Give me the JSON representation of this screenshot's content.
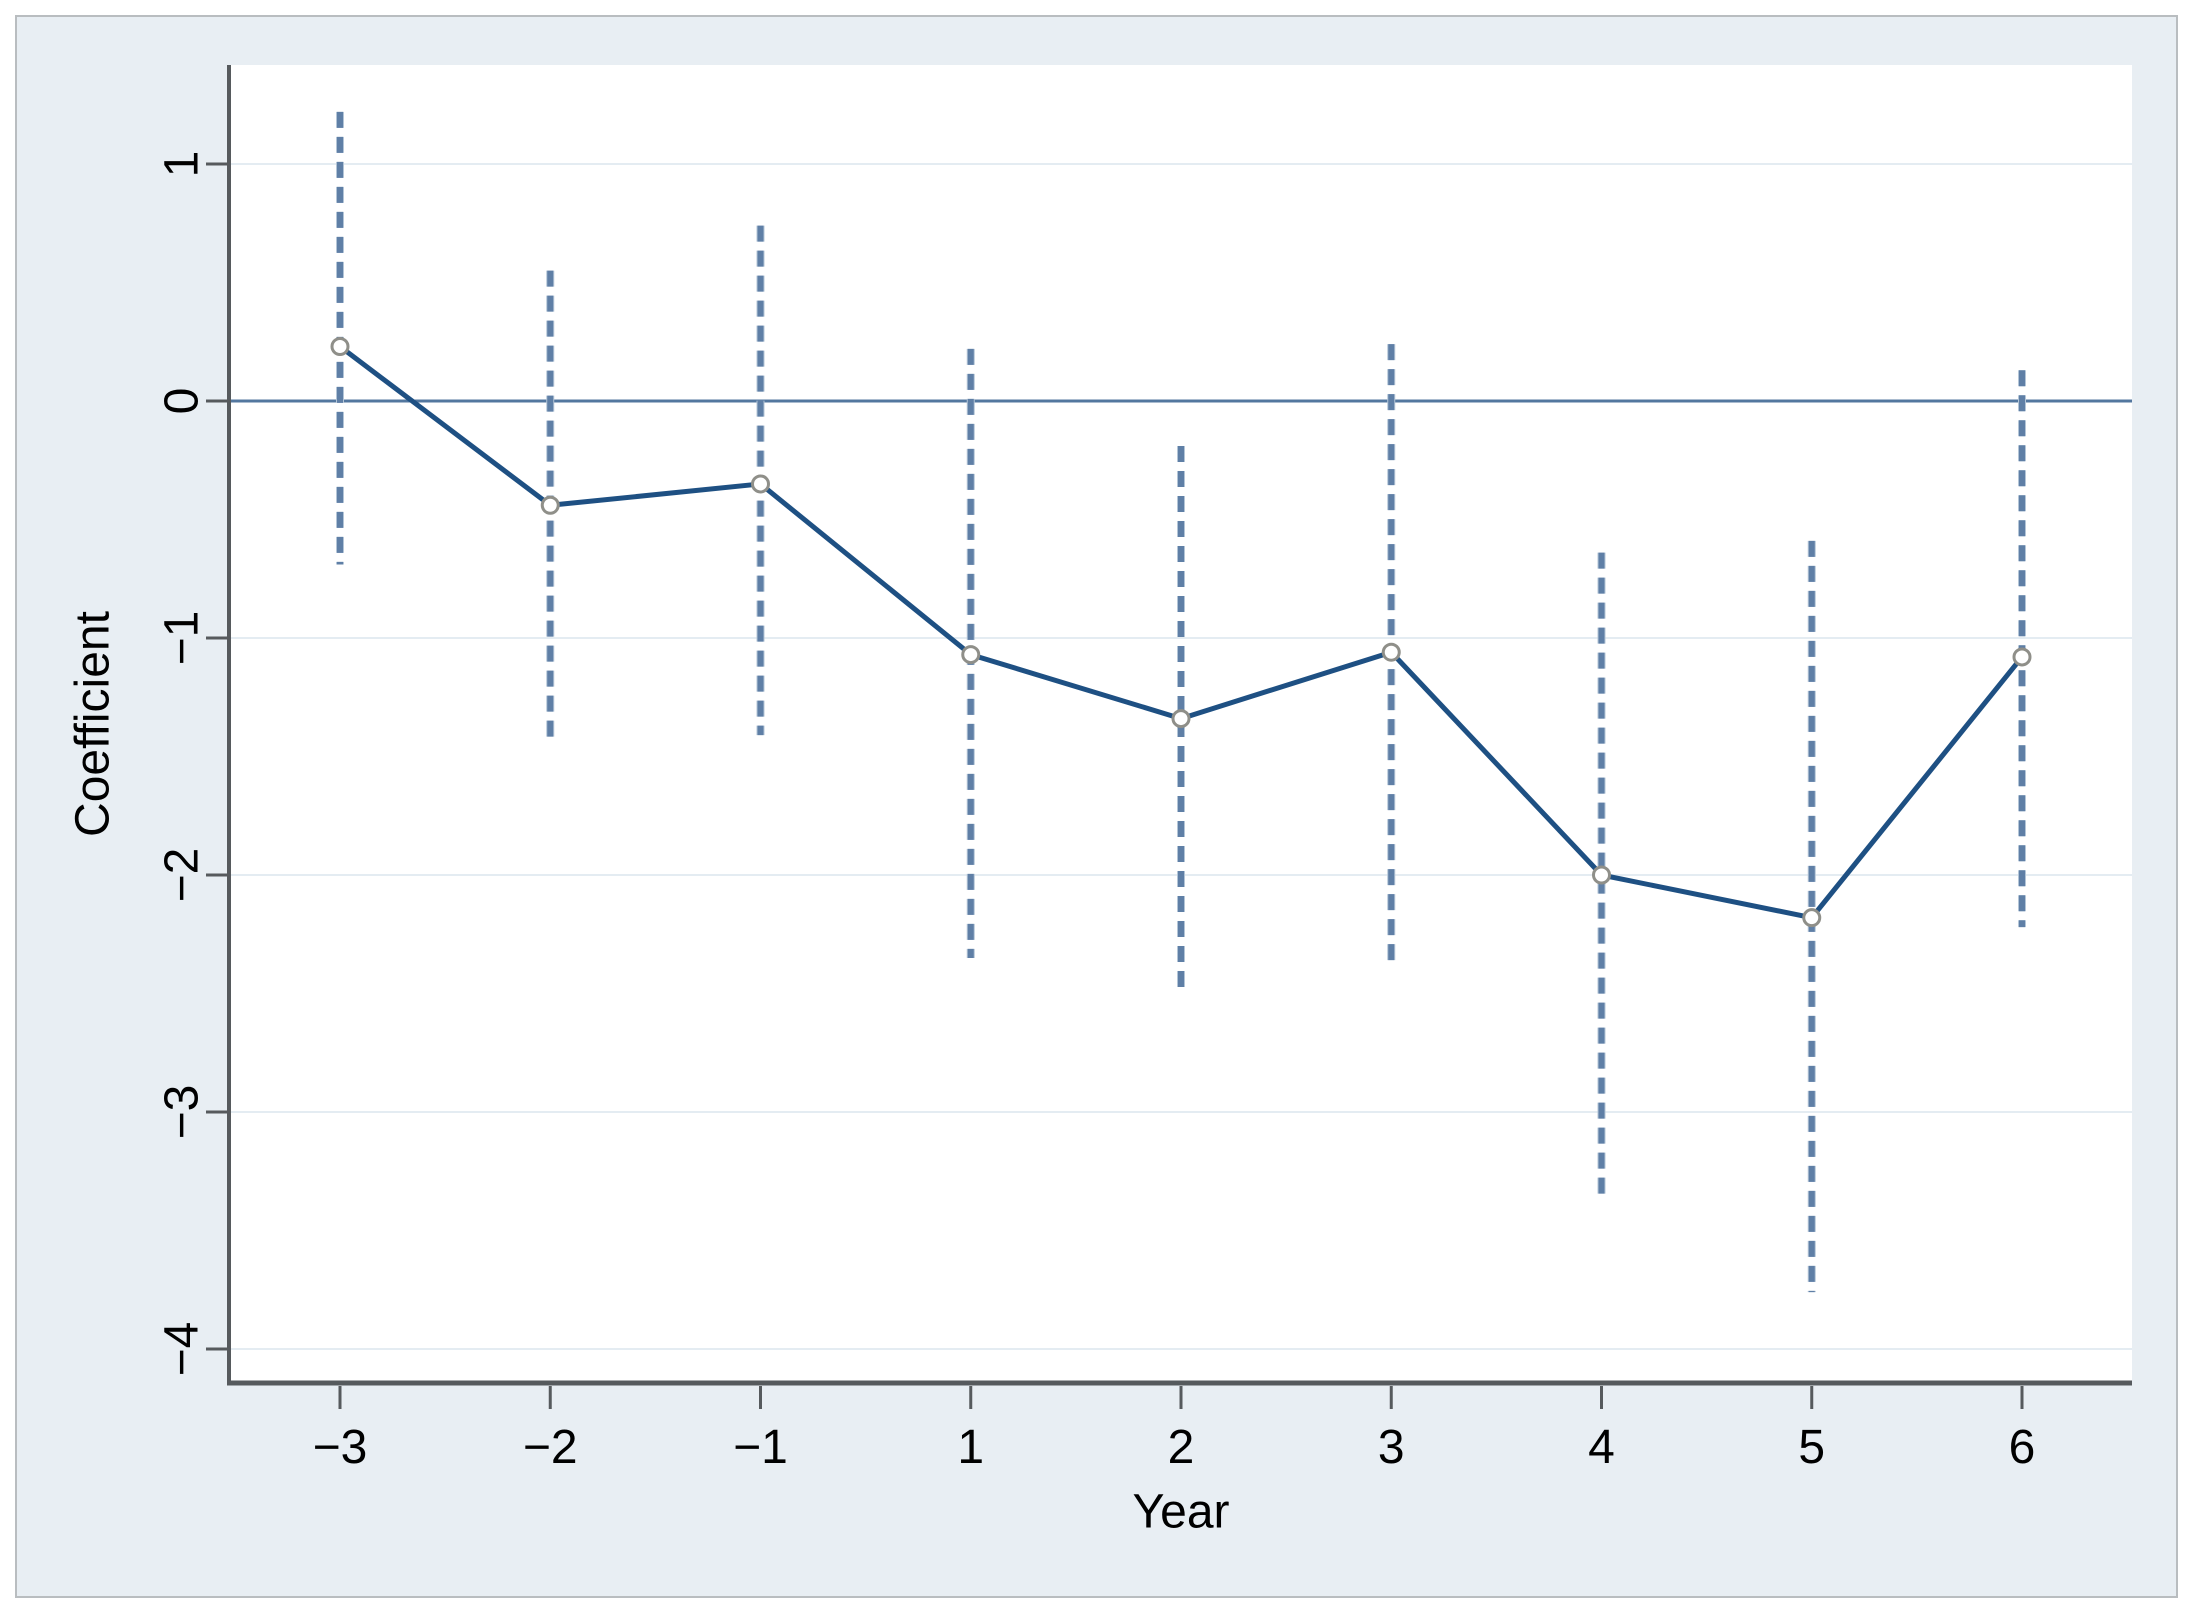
{
  "figure": {
    "background_color": "#e8eef3",
    "border_color": "#b9bdc0",
    "plot_background": "#ffffff"
  },
  "chart_data": {
    "type": "line",
    "title": "",
    "xlabel": "Year",
    "ylabel": "Coefficient",
    "categories": [
      "-3",
      "-2",
      "-1",
      "1",
      "2",
      "3",
      "4",
      "5",
      "6"
    ],
    "series": [
      {
        "name": "coefficient",
        "values": [
          0.23,
          -0.44,
          -0.35,
          -1.07,
          -1.34,
          -1.06,
          -2.0,
          -2.18,
          -1.08
        ]
      },
      {
        "name": "ci_upper",
        "values": [
          1.22,
          0.55,
          0.74,
          0.22,
          -0.19,
          0.24,
          -0.64,
          -0.59,
          0.13
        ]
      },
      {
        "name": "ci_lower",
        "values": [
          -0.69,
          -1.43,
          -1.41,
          -2.35,
          -2.5,
          -2.37,
          -3.36,
          -3.76,
          -2.22
        ]
      }
    ],
    "y_ticks": [
      1,
      0,
      -1,
      -2,
      -3,
      -4
    ],
    "ylim": [
      -4.14,
      1.42
    ],
    "grid": "horizontal",
    "zero_line": true,
    "legend": "none",
    "marker": "open-circle",
    "ci_style": "dashed-vertical",
    "colors": {
      "line": "#1e5083",
      "ci_dash": "#5f7fa6",
      "ci_halo": "#b3c5d7",
      "zero_line": "#53779f",
      "grid": "#e4ecf2",
      "axis": "#565a5d",
      "tick_label": "#000000",
      "marker_stroke": "#8f8f89",
      "marker_fill": "#ffffff"
    }
  }
}
